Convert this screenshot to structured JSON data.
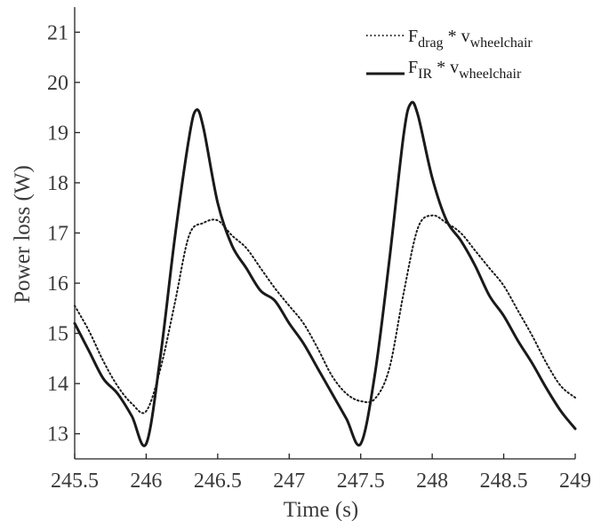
{
  "chart_data": {
    "type": "line",
    "title": "",
    "xlabel": "Time (s)",
    "ylabel": "Power loss (W)",
    "xlim": [
      245.5,
      249
    ],
    "ylim": [
      12.5,
      21.5
    ],
    "xticks": [
      "245.5",
      "246",
      "246.5",
      "247",
      "247.5",
      "248",
      "248.5",
      "249"
    ],
    "yticks": [
      "13",
      "14",
      "15",
      "16",
      "17",
      "18",
      "19",
      "20",
      "21"
    ],
    "grid": false,
    "legend_position": "top-right",
    "series": [
      {
        "name": "F_drag * v_wheelchair",
        "legend_main": "F",
        "legend_sub": "drag",
        "legend_mid": " * v",
        "legend_sub2": "wheelchair",
        "style": "dotted",
        "color": "#1a1a1a",
        "x": [
          245.5,
          245.6,
          245.7,
          245.8,
          245.9,
          246.0,
          246.1,
          246.2,
          246.3,
          246.4,
          246.5,
          246.6,
          246.7,
          246.8,
          246.9,
          247.0,
          247.1,
          247.2,
          247.3,
          247.4,
          247.5,
          247.6,
          247.7,
          247.8,
          247.9,
          248.0,
          248.1,
          248.2,
          248.3,
          248.4,
          248.5,
          248.6,
          248.7,
          248.8,
          248.9,
          249.0
        ],
        "y": [
          15.55,
          15.05,
          14.45,
          13.95,
          13.6,
          13.45,
          14.3,
          15.6,
          16.95,
          17.2,
          17.25,
          16.95,
          16.7,
          16.3,
          15.9,
          15.55,
          15.2,
          14.7,
          14.15,
          13.8,
          13.65,
          13.7,
          14.3,
          15.8,
          17.1,
          17.35,
          17.2,
          17.0,
          16.65,
          16.3,
          15.95,
          15.45,
          14.95,
          14.4,
          13.95,
          13.72
        ]
      },
      {
        "name": "F_IR * v_wheelchair",
        "legend_main": "F",
        "legend_sub": "IR",
        "legend_mid": " * v",
        "legend_sub2": "wheelchair",
        "style": "solid",
        "color": "#1a1a1a",
        "x": [
          245.5,
          245.6,
          245.7,
          245.8,
          245.9,
          246.0,
          246.1,
          246.2,
          246.3,
          246.35,
          246.4,
          246.5,
          246.6,
          246.7,
          246.8,
          246.9,
          247.0,
          247.1,
          247.2,
          247.3,
          247.4,
          247.5,
          247.6,
          247.7,
          247.8,
          247.85,
          247.9,
          248.0,
          248.1,
          248.2,
          248.3,
          248.4,
          248.5,
          248.6,
          248.7,
          248.8,
          248.9,
          249.0
        ],
        "y": [
          15.2,
          14.65,
          14.1,
          13.8,
          13.35,
          12.8,
          14.55,
          16.9,
          18.9,
          19.45,
          19.1,
          17.6,
          16.75,
          16.3,
          15.85,
          15.65,
          15.2,
          14.8,
          14.3,
          13.8,
          13.3,
          12.8,
          14.2,
          16.45,
          18.95,
          19.58,
          19.35,
          18.1,
          17.25,
          16.85,
          16.35,
          15.75,
          15.35,
          14.85,
          14.4,
          13.9,
          13.45,
          13.1
        ]
      }
    ]
  }
}
